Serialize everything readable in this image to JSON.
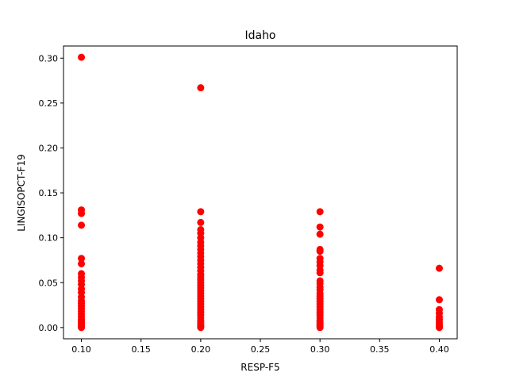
{
  "chart_data": {
    "type": "scatter",
    "title": "Idaho",
    "xlabel": "RESP-F5",
    "ylabel": "LINGISOPCT-F19",
    "xlim": [
      0.085,
      0.415
    ],
    "ylim": [
      -0.0125,
      0.3135
    ],
    "x_ticks": [
      0.1,
      0.15,
      0.2,
      0.25,
      0.3,
      0.35,
      0.4
    ],
    "x_tick_labels": [
      "0.10",
      "0.15",
      "0.20",
      "0.25",
      "0.30",
      "0.35",
      "0.40"
    ],
    "y_ticks": [
      0.0,
      0.05,
      0.1,
      0.15,
      0.2,
      0.25,
      0.3
    ],
    "y_tick_labels": [
      "0.00",
      "0.05",
      "0.10",
      "0.15",
      "0.20",
      "0.25",
      "0.30"
    ],
    "grid": false,
    "series": [
      {
        "color": "#ff0000",
        "points": [
          [
            0.1,
            0.301
          ],
          [
            0.1,
            0.131
          ],
          [
            0.1,
            0.127
          ],
          [
            0.1,
            0.114
          ],
          [
            0.1,
            0.077
          ],
          [
            0.1,
            0.071
          ],
          [
            0.1,
            0.06
          ],
          [
            0.1,
            0.056
          ],
          [
            0.1,
            0.052
          ],
          [
            0.1,
            0.048
          ],
          [
            0.1,
            0.043
          ],
          [
            0.1,
            0.039
          ],
          [
            0.1,
            0.034
          ],
          [
            0.1,
            0.03
          ],
          [
            0.1,
            0.027
          ],
          [
            0.1,
            0.024
          ],
          [
            0.1,
            0.021
          ],
          [
            0.1,
            0.018
          ],
          [
            0.1,
            0.015
          ],
          [
            0.1,
            0.012
          ],
          [
            0.1,
            0.009
          ],
          [
            0.1,
            0.007
          ],
          [
            0.1,
            0.005
          ],
          [
            0.1,
            0.003
          ],
          [
            0.1,
            0.001
          ],
          [
            0.1,
            0.0
          ],
          [
            0.2,
            0.267
          ],
          [
            0.2,
            0.129
          ],
          [
            0.2,
            0.117
          ],
          [
            0.2,
            0.109
          ],
          [
            0.2,
            0.105
          ],
          [
            0.2,
            0.1
          ],
          [
            0.2,
            0.095
          ],
          [
            0.2,
            0.091
          ],
          [
            0.2,
            0.087
          ],
          [
            0.2,
            0.083
          ],
          [
            0.2,
            0.079
          ],
          [
            0.2,
            0.075
          ],
          [
            0.2,
            0.071
          ],
          [
            0.2,
            0.067
          ],
          [
            0.2,
            0.063
          ],
          [
            0.2,
            0.059
          ],
          [
            0.2,
            0.056
          ],
          [
            0.2,
            0.053
          ],
          [
            0.2,
            0.05
          ],
          [
            0.2,
            0.047
          ],
          [
            0.2,
            0.044
          ],
          [
            0.2,
            0.041
          ],
          [
            0.2,
            0.038
          ],
          [
            0.2,
            0.035
          ],
          [
            0.2,
            0.032
          ],
          [
            0.2,
            0.029
          ],
          [
            0.2,
            0.026
          ],
          [
            0.2,
            0.023
          ],
          [
            0.2,
            0.02
          ],
          [
            0.2,
            0.017
          ],
          [
            0.2,
            0.014
          ],
          [
            0.2,
            0.011
          ],
          [
            0.2,
            0.008
          ],
          [
            0.2,
            0.006
          ],
          [
            0.2,
            0.004
          ],
          [
            0.2,
            0.002
          ],
          [
            0.2,
            0.001
          ],
          [
            0.2,
            0.0
          ],
          [
            0.3,
            0.129
          ],
          [
            0.3,
            0.112
          ],
          [
            0.3,
            0.104
          ],
          [
            0.3,
            0.087
          ],
          [
            0.3,
            0.085
          ],
          [
            0.3,
            0.077
          ],
          [
            0.3,
            0.073
          ],
          [
            0.3,
            0.069
          ],
          [
            0.3,
            0.064
          ],
          [
            0.3,
            0.061
          ],
          [
            0.3,
            0.052
          ],
          [
            0.3,
            0.049
          ],
          [
            0.3,
            0.045
          ],
          [
            0.3,
            0.042
          ],
          [
            0.3,
            0.038
          ],
          [
            0.3,
            0.035
          ],
          [
            0.3,
            0.032
          ],
          [
            0.3,
            0.029
          ],
          [
            0.3,
            0.026
          ],
          [
            0.3,
            0.023
          ],
          [
            0.3,
            0.02
          ],
          [
            0.3,
            0.017
          ],
          [
            0.3,
            0.014
          ],
          [
            0.3,
            0.011
          ],
          [
            0.3,
            0.008
          ],
          [
            0.3,
            0.006
          ],
          [
            0.3,
            0.004
          ],
          [
            0.3,
            0.002
          ],
          [
            0.3,
            0.0
          ],
          [
            0.4,
            0.066
          ],
          [
            0.4,
            0.031
          ],
          [
            0.4,
            0.02
          ],
          [
            0.4,
            0.016
          ],
          [
            0.4,
            0.012
          ],
          [
            0.4,
            0.009
          ],
          [
            0.4,
            0.006
          ],
          [
            0.4,
            0.004
          ],
          [
            0.4,
            0.002
          ],
          [
            0.4,
            0.001
          ],
          [
            0.4,
            0.0
          ]
        ]
      }
    ]
  }
}
